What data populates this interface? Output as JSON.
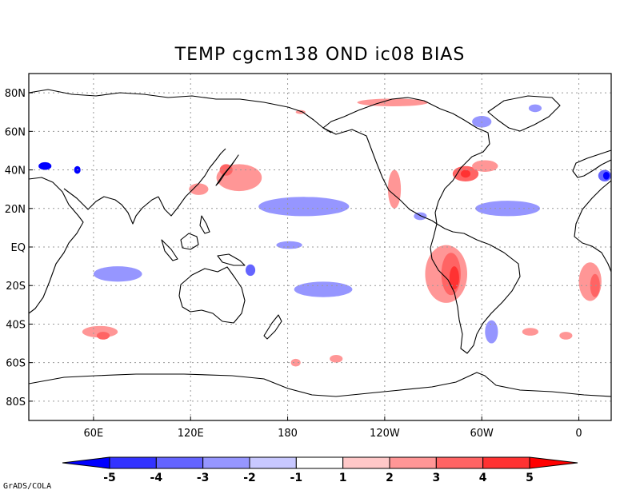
{
  "title": "TEMP cgcm138 OND ic08 BIAS",
  "credit": "GrADS/COLA",
  "map": {
    "lon_range": [
      20,
      380
    ],
    "lat_range": [
      -90,
      90
    ],
    "x_ticks": [
      {
        "lon": 60,
        "label": "60E"
      },
      {
        "lon": 120,
        "label": "120E"
      },
      {
        "lon": 180,
        "label": "180"
      },
      {
        "lon": 240,
        "label": "120W"
      },
      {
        "lon": 300,
        "label": "60W"
      },
      {
        "lon": 360,
        "label": "0"
      }
    ],
    "y_ticks": [
      {
        "lat": 80,
        "label": "80N"
      },
      {
        "lat": 60,
        "label": "60N"
      },
      {
        "lat": 40,
        "label": "40N"
      },
      {
        "lat": 20,
        "label": "20N"
      },
      {
        "lat": 0,
        "label": "EQ"
      },
      {
        "lat": -20,
        "label": "20S"
      },
      {
        "lat": -40,
        "label": "40S"
      },
      {
        "lat": -60,
        "label": "60S"
      },
      {
        "lat": -80,
        "label": "80S"
      }
    ]
  },
  "colorbar": {
    "levels": [
      "-5",
      "-4",
      "-3",
      "-2",
      "-1",
      "1",
      "2",
      "3",
      "4",
      "5"
    ],
    "colors": [
      "#0000ff",
      "#3232ff",
      "#6464ff",
      "#9696ff",
      "#c8c8ff",
      "#ffffff",
      "#ffc8c8",
      "#ff9696",
      "#ff6464",
      "#ff3232",
      "#ff0000"
    ]
  },
  "bias_regions": [
    {
      "name": "north-pacific-west-warm",
      "lon": 150,
      "lat": 36,
      "rlon": 14,
      "rlat": 7,
      "level": 2
    },
    {
      "name": "japan-warm-core",
      "lon": 142,
      "lat": 40,
      "rlon": 4,
      "rlat": 3,
      "level": 3
    },
    {
      "name": "central-pacific-cool",
      "lon": 190,
      "lat": 21,
      "rlon": 28,
      "rlat": 5,
      "level": -2
    },
    {
      "name": "east-pacific-eq-cool",
      "lon": 181,
      "lat": 1,
      "rlon": 8,
      "rlat": 2,
      "level": -2
    },
    {
      "name": "south-pacific-cool",
      "lon": 202,
      "lat": -22,
      "rlon": 18,
      "rlat": 4,
      "level": -2
    },
    {
      "name": "indian-ocean-cool",
      "lon": 75,
      "lat": -14,
      "rlon": 15,
      "rlat": 4,
      "level": -2
    },
    {
      "name": "peru-warm-outer",
      "lon": 278,
      "lat": -14,
      "rlon": 13,
      "rlat": 15,
      "level": 2
    },
    {
      "name": "peru-warm-mid",
      "lon": 281,
      "lat": -14,
      "rlon": 6,
      "rlat": 11,
      "level": 3
    },
    {
      "name": "peru-warm-core",
      "lon": 283,
      "lat": -16,
      "rlon": 3,
      "rlat": 6,
      "level": 4
    },
    {
      "name": "california-warm",
      "lon": 246,
      "lat": 30,
      "rlon": 4,
      "rlat": 10,
      "level": 2
    },
    {
      "name": "us-east-coast-warm",
      "lon": 290,
      "lat": 38,
      "rlon": 8,
      "rlat": 4,
      "level": 3
    },
    {
      "name": "gulf-stream-core",
      "lon": 290,
      "lat": 38,
      "rlon": 3,
      "rlat": 2,
      "level": 4
    },
    {
      "name": "north-atlantic-warm",
      "lon": 302,
      "lat": 42,
      "rlon": 8,
      "rlat": 3,
      "level": 2
    },
    {
      "name": "tropical-atlantic-cool",
      "lon": 316,
      "lat": 20,
      "rlon": 20,
      "rlat": 4,
      "level": -2
    },
    {
      "name": "caribbean-cool",
      "lon": 262,
      "lat": 16,
      "rlon": 4,
      "rlat": 2,
      "level": -2
    },
    {
      "name": "benguela-warm-outer",
      "lon": 367,
      "lat": -18,
      "rlon": 7,
      "rlat": 10,
      "level": 2
    },
    {
      "name": "benguela-warm-core",
      "lon": 370,
      "lat": -20,
      "rlon": 3,
      "rlat": 6,
      "level": 3
    },
    {
      "name": "south-indian-warm",
      "lon": 64,
      "lat": -44,
      "rlon": 11,
      "rlat": 3,
      "level": 2
    },
    {
      "name": "south-indian-warm-core",
      "lon": 66,
      "lat": -46,
      "rlon": 4,
      "rlat": 2,
      "level": 3
    },
    {
      "name": "south-atlantic-cool",
      "lon": 306,
      "lat": -44,
      "rlon": 4,
      "rlat": 6,
      "level": -2
    },
    {
      "name": "south-atlantic-warm",
      "lon": 330,
      "lat": -44,
      "rlon": 5,
      "rlat": 2,
      "level": 2
    },
    {
      "name": "southern-ocean-warm",
      "lon": 352,
      "lat": -46,
      "rlon": 4,
      "rlat": 2,
      "level": 2
    },
    {
      "name": "labrador-cool",
      "lon": 300,
      "lat": 65,
      "rlon": 6,
      "rlat": 3,
      "level": -2
    },
    {
      "name": "greenland-sea-cool",
      "lon": 333,
      "lat": 72,
      "rlon": 4,
      "rlat": 2,
      "level": -2
    },
    {
      "name": "bering-warm",
      "lon": 188,
      "lat": 70,
      "rlon": 3,
      "rlat": 1,
      "level": 2
    },
    {
      "name": "arctic-warm",
      "lon": 245,
      "lat": 75,
      "rlon": 22,
      "rlat": 2,
      "level": 2
    },
    {
      "name": "mediterranean-cool",
      "lon": 376,
      "lat": 37,
      "rlon": 4,
      "rlat": 3,
      "level": -3
    },
    {
      "name": "mediterranean-core",
      "lon": 377,
      "lat": 37,
      "rlon": 2,
      "rlat": 2,
      "level": -5
    },
    {
      "name": "caspian-cool",
      "lon": 50,
      "lat": 40,
      "rlon": 2,
      "rlat": 2,
      "level": -5
    },
    {
      "name": "black-sea-cool",
      "lon": 30,
      "lat": 42,
      "rlon": 4,
      "rlat": 2,
      "level": -5
    },
    {
      "name": "coral-sea-cool",
      "lon": 157,
      "lat": -12,
      "rlon": 3,
      "rlat": 3,
      "level": -3
    },
    {
      "name": "china-sea-warm",
      "lon": 125,
      "lat": 30,
      "rlon": 6,
      "rlat": 3,
      "level": 2
    },
    {
      "name": "southeast-pacific-warm",
      "lon": 210,
      "lat": -58,
      "rlon": 4,
      "rlat": 2,
      "level": 2
    },
    {
      "name": "south-pacific-low-warm",
      "lon": 185,
      "lat": -60,
      "rlon": 3,
      "rlat": 2,
      "level": 2
    }
  ]
}
